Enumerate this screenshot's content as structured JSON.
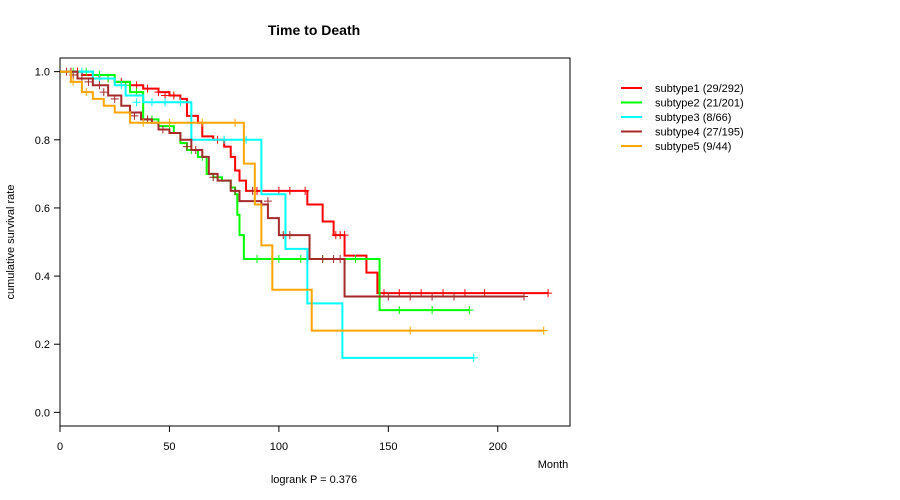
{
  "chart_data": {
    "type": "line",
    "title": "Time to Death",
    "xlabel": "Month",
    "ylabel": "cumulative survival rate",
    "annotation": "logrank P = 0.376",
    "xlim": [
      0,
      233
    ],
    "ylim": [
      -0.04,
      1.04
    ],
    "x_ticks": [
      0,
      50,
      100,
      150,
      200
    ],
    "y_ticks": [
      0.0,
      0.2,
      0.4,
      0.6,
      0.8,
      1.0
    ],
    "y_tick_labels": [
      "0.0",
      "0.2",
      "0.4",
      "0.6",
      "0.8",
      "1.0"
    ],
    "legend_position": "right",
    "series": [
      {
        "name": "subtype1 (29/292)",
        "color": "#ff0000",
        "steps": [
          [
            0,
            1.0
          ],
          [
            10,
            0.99
          ],
          [
            18,
            0.98
          ],
          [
            25,
            0.97
          ],
          [
            32,
            0.96
          ],
          [
            38,
            0.95
          ],
          [
            45,
            0.94
          ],
          [
            50,
            0.93
          ],
          [
            55,
            0.92
          ],
          [
            58,
            0.87
          ],
          [
            63,
            0.85
          ],
          [
            65,
            0.81
          ],
          [
            70,
            0.8
          ],
          [
            75,
            0.78
          ],
          [
            78,
            0.75
          ],
          [
            80,
            0.71
          ],
          [
            82,
            0.68
          ],
          [
            85,
            0.65
          ],
          [
            113,
            0.65
          ],
          [
            113,
            0.61
          ],
          [
            120,
            0.56
          ],
          [
            125,
            0.52
          ],
          [
            130,
            0.46
          ],
          [
            140,
            0.41
          ],
          [
            145,
            0.35
          ],
          [
            223,
            0.35
          ]
        ],
        "censors": [
          [
            5,
            1.0
          ],
          [
            8,
            1.0
          ],
          [
            15,
            0.99
          ],
          [
            22,
            0.98
          ],
          [
            28,
            0.97
          ],
          [
            35,
            0.96
          ],
          [
            40,
            0.95
          ],
          [
            45,
            0.94
          ],
          [
            48,
            0.93
          ],
          [
            52,
            0.93
          ],
          [
            72,
            0.8
          ],
          [
            90,
            0.65
          ],
          [
            100,
            0.65
          ],
          [
            105,
            0.65
          ],
          [
            112,
            0.65
          ],
          [
            126,
            0.52
          ],
          [
            128,
            0.52
          ],
          [
            130,
            0.52
          ],
          [
            148,
            0.35
          ],
          [
            155,
            0.35
          ],
          [
            165,
            0.35
          ],
          [
            175,
            0.35
          ],
          [
            185,
            0.35
          ],
          [
            194,
            0.35
          ],
          [
            223,
            0.35
          ]
        ]
      },
      {
        "name": "subtype2 (21/201)",
        "color": "#00ff00",
        "steps": [
          [
            0,
            1.0
          ],
          [
            15,
            0.99
          ],
          [
            25,
            0.97
          ],
          [
            32,
            0.94
          ],
          [
            38,
            0.86
          ],
          [
            45,
            0.84
          ],
          [
            52,
            0.82
          ],
          [
            55,
            0.79
          ],
          [
            58,
            0.77
          ],
          [
            63,
            0.75
          ],
          [
            67,
            0.7
          ],
          [
            70,
            0.69
          ],
          [
            74,
            0.68
          ],
          [
            78,
            0.66
          ],
          [
            80,
            0.64
          ],
          [
            81,
            0.58
          ],
          [
            82,
            0.52
          ],
          [
            84,
            0.45
          ],
          [
            146,
            0.45
          ],
          [
            146,
            0.3
          ],
          [
            187,
            0.3
          ]
        ],
        "censors": [
          [
            6,
            1.0
          ],
          [
            12,
            1.0
          ],
          [
            18,
            0.99
          ],
          [
            22,
            0.98
          ],
          [
            30,
            0.96
          ],
          [
            35,
            0.94
          ],
          [
            42,
            0.86
          ],
          [
            50,
            0.84
          ],
          [
            60,
            0.77
          ],
          [
            65,
            0.75
          ],
          [
            72,
            0.69
          ],
          [
            90,
            0.45
          ],
          [
            100,
            0.45
          ],
          [
            110,
            0.45
          ],
          [
            120,
            0.45
          ],
          [
            135,
            0.45
          ],
          [
            155,
            0.3
          ],
          [
            170,
            0.3
          ],
          [
            187,
            0.3
          ]
        ]
      },
      {
        "name": "subtype3 (8/66)",
        "color": "#00ffff",
        "steps": [
          [
            0,
            1.0
          ],
          [
            15,
            0.98
          ],
          [
            25,
            0.96
          ],
          [
            30,
            0.93
          ],
          [
            38,
            0.91
          ],
          [
            50,
            0.91
          ],
          [
            58,
            0.91
          ],
          [
            60,
            0.8
          ],
          [
            90,
            0.8
          ],
          [
            92,
            0.64
          ],
          [
            102,
            0.64
          ],
          [
            103,
            0.48
          ],
          [
            112,
            0.48
          ],
          [
            113,
            0.32
          ],
          [
            129,
            0.32
          ],
          [
            129,
            0.16
          ],
          [
            189,
            0.16
          ]
        ],
        "censors": [
          [
            10,
            1.0
          ],
          [
            18,
            0.98
          ],
          [
            28,
            0.96
          ],
          [
            35,
            0.91
          ],
          [
            42,
            0.91
          ],
          [
            48,
            0.91
          ],
          [
            55,
            0.91
          ],
          [
            75,
            0.8
          ],
          [
            85,
            0.8
          ],
          [
            189,
            0.16
          ]
        ]
      },
      {
        "name": "subtype4 (27/195)",
        "color": "#a52a2a",
        "steps": [
          [
            0,
            1.0
          ],
          [
            8,
            0.98
          ],
          [
            15,
            0.96
          ],
          [
            22,
            0.93
          ],
          [
            28,
            0.9
          ],
          [
            32,
            0.88
          ],
          [
            37,
            0.86
          ],
          [
            42,
            0.85
          ],
          [
            45,
            0.83
          ],
          [
            50,
            0.82
          ],
          [
            55,
            0.8
          ],
          [
            60,
            0.77
          ],
          [
            65,
            0.75
          ],
          [
            68,
            0.7
          ],
          [
            72,
            0.68
          ],
          [
            78,
            0.65
          ],
          [
            82,
            0.62
          ],
          [
            90,
            0.62
          ],
          [
            92,
            0.61
          ],
          [
            95,
            0.57
          ],
          [
            100,
            0.52
          ],
          [
            110,
            0.52
          ],
          [
            114,
            0.45
          ],
          [
            130,
            0.45
          ],
          [
            130,
            0.34
          ],
          [
            212,
            0.34
          ]
        ],
        "censors": [
          [
            3,
            1.0
          ],
          [
            6,
            0.99
          ],
          [
            10,
            0.98
          ],
          [
            13,
            0.97
          ],
          [
            18,
            0.96
          ],
          [
            20,
            0.94
          ],
          [
            25,
            0.92
          ],
          [
            34,
            0.87
          ],
          [
            40,
            0.86
          ],
          [
            47,
            0.83
          ],
          [
            58,
            0.78
          ],
          [
            62,
            0.77
          ],
          [
            70,
            0.69
          ],
          [
            80,
            0.65
          ],
          [
            88,
            0.65
          ],
          [
            95,
            0.62
          ],
          [
            102,
            0.52
          ],
          [
            105,
            0.52
          ],
          [
            120,
            0.45
          ],
          [
            125,
            0.45
          ],
          [
            128,
            0.45
          ],
          [
            150,
            0.34
          ],
          [
            160,
            0.34
          ],
          [
            170,
            0.34
          ],
          [
            180,
            0.34
          ],
          [
            212,
            0.34
          ]
        ]
      },
      {
        "name": "subtype5 (9/44)",
        "color": "#ffa500",
        "steps": [
          [
            0,
            1.0
          ],
          [
            5,
            0.97
          ],
          [
            10,
            0.94
          ],
          [
            15,
            0.92
          ],
          [
            20,
            0.9
          ],
          [
            25,
            0.88
          ],
          [
            32,
            0.85
          ],
          [
            45,
            0.85
          ],
          [
            55,
            0.85
          ],
          [
            83,
            0.85
          ],
          [
            84,
            0.73
          ],
          [
            87,
            0.73
          ],
          [
            89,
            0.61
          ],
          [
            92,
            0.49
          ],
          [
            96,
            0.49
          ],
          [
            97,
            0.36
          ],
          [
            115,
            0.36
          ],
          [
            115,
            0.24
          ],
          [
            221,
            0.24
          ]
        ],
        "censors": [
          [
            6,
            0.97
          ],
          [
            12,
            0.94
          ],
          [
            38,
            0.85
          ],
          [
            50,
            0.85
          ],
          [
            65,
            0.85
          ],
          [
            80,
            0.85
          ],
          [
            160,
            0.24
          ],
          [
            221,
            0.24
          ]
        ]
      }
    ]
  }
}
